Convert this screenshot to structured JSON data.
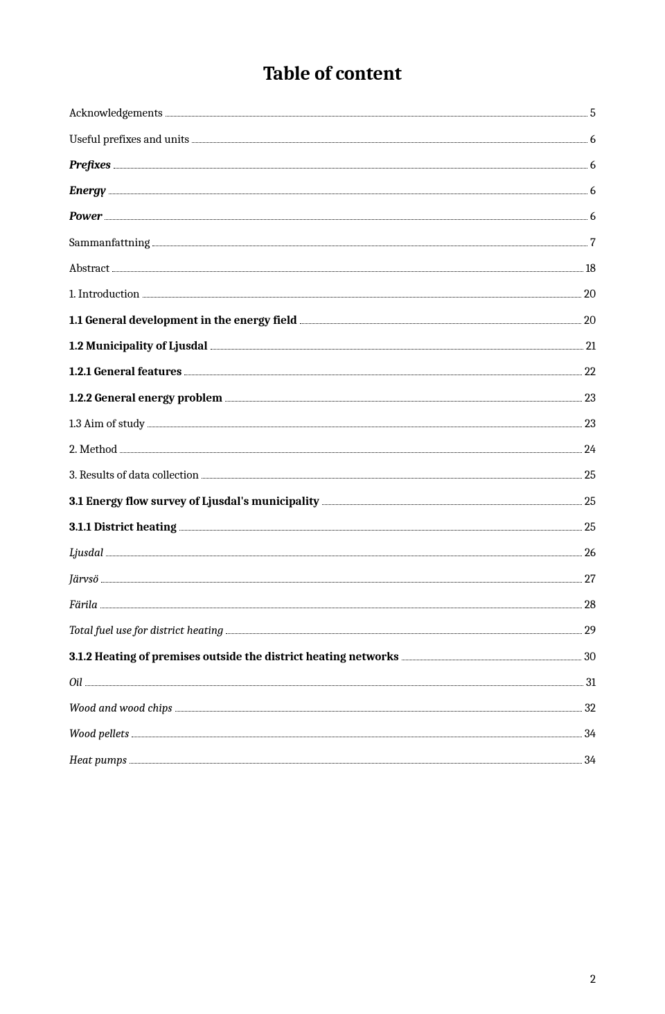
{
  "title": "Table of content",
  "entries": [
    {
      "label": "Acknowledgements",
      "page": "5",
      "style": "plain"
    },
    {
      "label": "Useful prefixes and units",
      "page": "6",
      "style": "plain"
    },
    {
      "label": "Prefixes",
      "page": "6",
      "style": "bold-italic"
    },
    {
      "label": "Energy",
      "page": "6",
      "style": "bold-italic"
    },
    {
      "label": "Power",
      "page": "6",
      "style": "bold-italic"
    },
    {
      "label": "Sammanfattning",
      "page": "7",
      "style": "plain"
    },
    {
      "label": "Abstract",
      "page": "18",
      "style": "plain"
    },
    {
      "label": "1. Introduction",
      "page": "20",
      "style": "plain"
    },
    {
      "label": "1.1 General development in the energy field",
      "page": "20",
      "style": "bold"
    },
    {
      "label": "1.2 Municipality of Ljusdal",
      "page": "21",
      "style": "bold"
    },
    {
      "label": "1.2.1 General features",
      "page": "22",
      "style": "bold"
    },
    {
      "label": "1.2.2 General energy problem",
      "page": "23",
      "style": "bold"
    },
    {
      "label": "1.3 Aim of study",
      "page": "23",
      "style": "plain"
    },
    {
      "label": "2. Method",
      "page": "24",
      "style": "plain"
    },
    {
      "label": "3. Results of data collection",
      "page": "25",
      "style": "plain"
    },
    {
      "label": "3.1 Energy flow survey of Ljusdal's municipality",
      "page": "25",
      "style": "bold"
    },
    {
      "label": "3.1.1 District heating",
      "page": "25",
      "style": "bold"
    },
    {
      "label": "Ljusdal",
      "page": "26",
      "style": "italic"
    },
    {
      "label": "Järvsö",
      "page": "27",
      "style": "italic"
    },
    {
      "label": "Färila",
      "page": "28",
      "style": "italic"
    },
    {
      "label": "Total fuel use for district heating",
      "page": "29",
      "style": "italic"
    },
    {
      "label": "3.1.2 Heating of premises outside the district heating networks",
      "page": "30",
      "style": "bold"
    },
    {
      "label": "Oil",
      "page": "31",
      "style": "italic"
    },
    {
      "label": "Wood and wood chips",
      "page": "32",
      "style": "italic"
    },
    {
      "label": "Wood pellets",
      "page": "34",
      "style": "italic"
    },
    {
      "label": "Heat pumps",
      "page": "34",
      "style": "italic"
    }
  ],
  "footer_page_number": "2",
  "colors": {
    "background": "#ffffff",
    "text": "#000000"
  },
  "font_family": "Cambria, Georgia, serif",
  "title_fontsize": 28,
  "entry_fontsize": 17
}
